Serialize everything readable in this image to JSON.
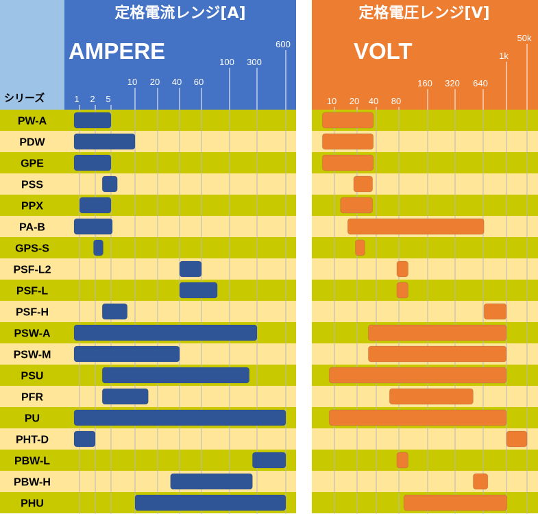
{
  "colors": {
    "amp_header": "#4472c4",
    "volt_header": "#ed7d31",
    "series_header": "#9dc3e6",
    "row_dark": "#c9c900",
    "row_light": "#ffe699",
    "amp_bar": "#2f5597",
    "volt_bar": "#ed7d31"
  },
  "series_column_label": "シリーズ",
  "chart_data": [
    {
      "type": "bar",
      "orientation": "horizontal-range",
      "title": "定格電流レンジ[A]",
      "subtitle": "AMPERE",
      "scale": "ordinal",
      "ticks": [
        "1",
        "2",
        "5",
        "10",
        "20",
        "40",
        "60",
        "100",
        "300",
        "600"
      ],
      "categories": [
        "PW-A",
        "PDW",
        "GPE",
        "PSS",
        "PPX",
        "PA-B",
        "GPS-S",
        "PSF-L2",
        "PSF-L",
        "PSF-H",
        "PSW-A",
        "PSW-M",
        "PSU",
        "PFR",
        "PU",
        "PHT-D",
        "PBW-L",
        "PBW-H",
        "PHU"
      ],
      "ranges": [
        [
          1,
          5
        ],
        [
          1,
          10
        ],
        [
          1,
          5
        ],
        [
          3,
          6
        ],
        [
          1.2,
          5
        ],
        [
          1,
          5.2
        ],
        [
          2.2,
          2.6
        ],
        [
          40,
          60
        ],
        [
          40,
          80
        ],
        [
          3,
          8
        ],
        [
          1,
          300
        ],
        [
          1,
          40
        ],
        [
          3,
          220
        ],
        [
          3,
          15
        ],
        [
          1,
          600
        ],
        [
          1,
          2
        ],
        [
          250,
          600
        ],
        [
          30,
          250
        ],
        [
          10,
          600
        ]
      ]
    },
    {
      "type": "bar",
      "orientation": "horizontal-range",
      "title": "定格電圧レンジ[V]",
      "subtitle": "VOLT",
      "scale": "ordinal",
      "ticks": [
        "10",
        "20",
        "40",
        "80",
        "160",
        "320",
        "640",
        "1k",
        "50k"
      ],
      "categories": [
        "PW-A",
        "PDW",
        "GPE",
        "PSS",
        "PPX",
        "PA-B",
        "GPS-S",
        "PSF-L2",
        "PSF-L",
        "PSF-H",
        "PSW-A",
        "PSW-M",
        "PSU",
        "PFR",
        "PU",
        "PHT-D",
        "PBW-L",
        "PBW-H",
        "PHU"
      ],
      "ranges": [
        [
          6,
          36
        ],
        [
          6,
          36
        ],
        [
          6,
          36
        ],
        [
          18,
          35
        ],
        [
          12,
          35
        ],
        [
          15,
          650
        ],
        [
          20,
          25
        ],
        [
          75,
          100
        ],
        [
          75,
          100
        ],
        [
          650,
          1000
        ],
        [
          30,
          1000
        ],
        [
          30,
          1000
        ],
        [
          8,
          1000
        ],
        [
          60,
          500
        ],
        [
          8,
          1000
        ],
        [
          1000,
          50000
        ],
        [
          75,
          100
        ],
        [
          500,
          700
        ],
        [
          90,
          1100
        ]
      ]
    }
  ]
}
